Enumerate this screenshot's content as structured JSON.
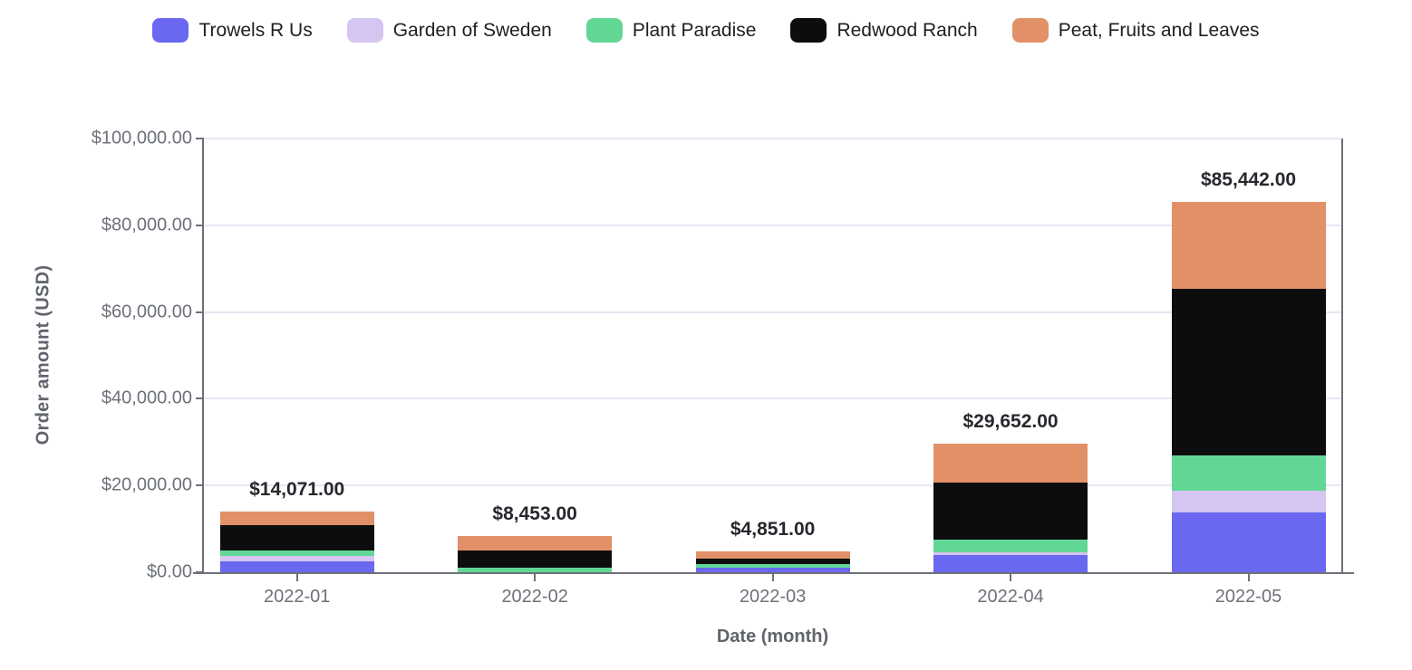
{
  "colors": {
    "background": "#ffffff",
    "axis": "#6e717a",
    "grid": "#e8e6f3",
    "tick_text": "#6d717a",
    "axis_title_text": "#60646c",
    "legend_text": "#1d1f23",
    "total_label_text": "#26282d"
  },
  "chart_data": {
    "type": "bar",
    "stacked": true,
    "legend_position": "top",
    "grid": true,
    "xlabel": "Date (month)",
    "ylabel": "Order amount (USD)",
    "ylim": [
      0,
      100000
    ],
    "y_ticks": [
      0,
      20000,
      40000,
      60000,
      80000,
      100000
    ],
    "y_tick_labels": [
      "$0.00",
      "$20,000.00",
      "$40,000.00",
      "$60,000.00",
      "$80,000.00",
      "$100,000.00"
    ],
    "categories": [
      "2022-01",
      "2022-02",
      "2022-03",
      "2022-04",
      "2022-05"
    ],
    "series": [
      {
        "name": "Trowels R Us",
        "color": "#6a67f0",
        "values": [
          2600,
          0,
          950,
          4000,
          13700
        ]
      },
      {
        "name": "Garden of Sweden",
        "color": "#d4c5f1",
        "values": [
          1250,
          0,
          0,
          600,
          5000
        ]
      },
      {
        "name": "Plant Paradise",
        "color": "#62d795",
        "values": [
          1250,
          1053,
          1000,
          3000,
          8200
        ]
      },
      {
        "name": "Redwood Ranch",
        "color": "#0d0d0d",
        "values": [
          5750,
          3900,
          1200,
          13100,
          38400
        ]
      },
      {
        "name": "Peat, Fruits and Leaves",
        "color": "#e29067",
        "values": [
          3221,
          3500,
          1701,
          8952,
          20142
        ]
      }
    ],
    "totals": [
      14071,
      8453,
      4851,
      29652,
      85442
    ],
    "total_labels": [
      "$14,071.00",
      "$8,453.00",
      "$4,851.00",
      "$29,652.00",
      "$85,442.00"
    ]
  }
}
